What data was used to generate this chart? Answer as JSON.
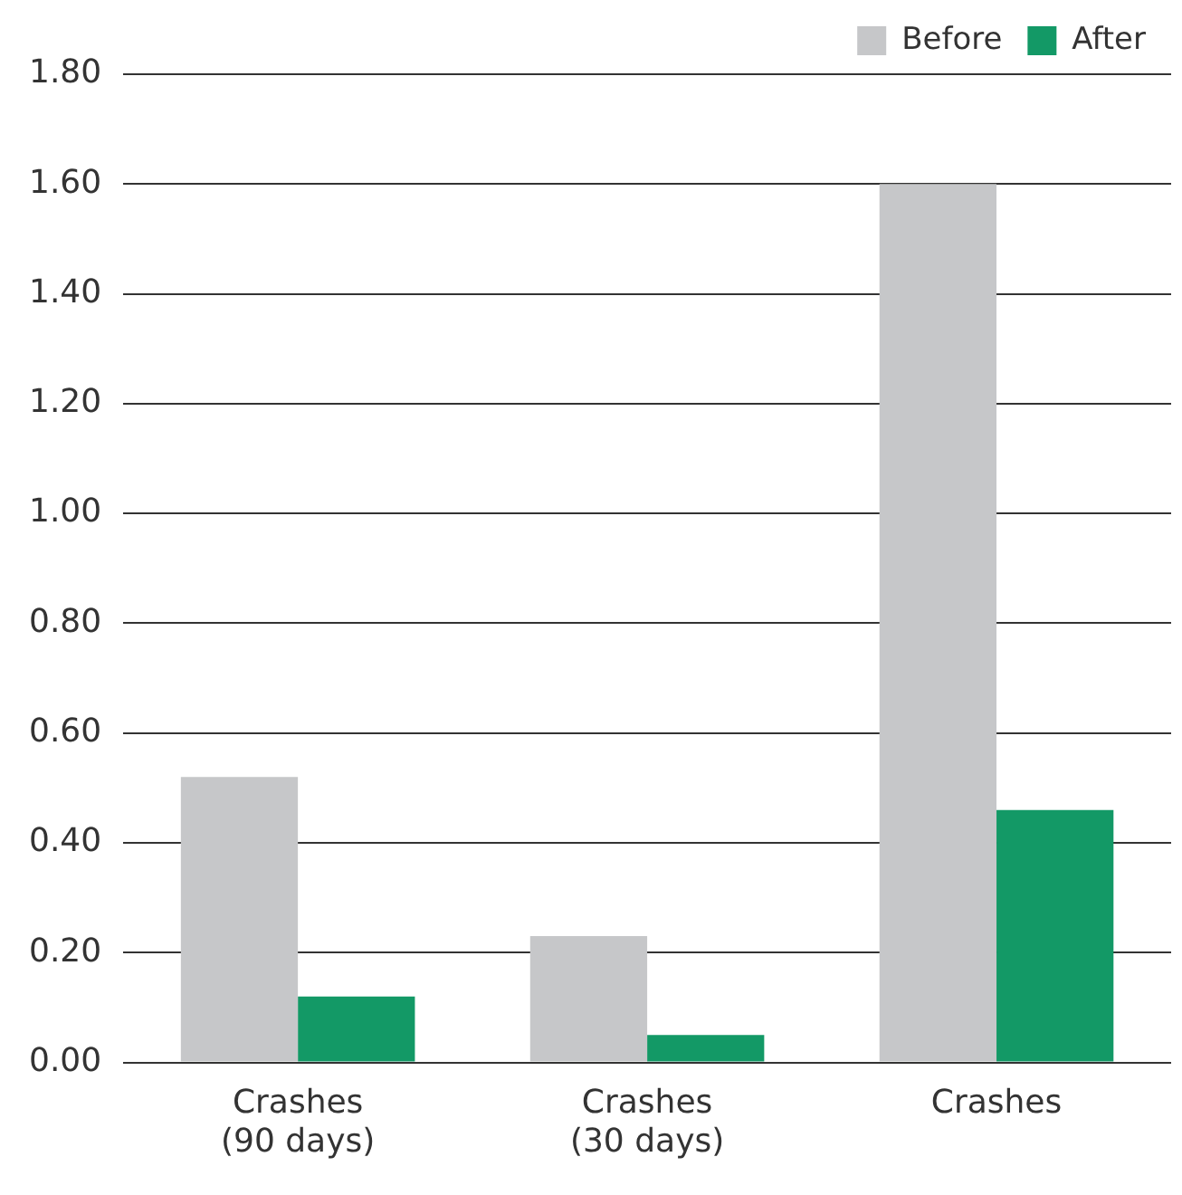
{
  "chart_data": {
    "type": "bar",
    "categories": [
      "Crashes\n(90 days)",
      "Crashes\n(30 days)",
      "Crashes"
    ],
    "series": [
      {
        "name": "Before",
        "color": "#c6c7c9",
        "values": [
          0.52,
          0.23,
          1.6
        ]
      },
      {
        "name": "After",
        "color": "#139966",
        "values": [
          0.12,
          0.05,
          0.46
        ]
      }
    ],
    "ylim": [
      0,
      1.8
    ],
    "yticks": [
      {
        "value": 0,
        "label": "0.00"
      },
      {
        "value": 0.2,
        "label": "0.20"
      },
      {
        "value": 0.4,
        "label": "0.40"
      },
      {
        "value": 0.6,
        "label": "0.60"
      },
      {
        "value": 0.8,
        "label": "0.80"
      },
      {
        "value": 1,
        "label": "1.00"
      },
      {
        "value": 1.2,
        "label": "1.20"
      },
      {
        "value": 1.4,
        "label": "1.40"
      },
      {
        "value": 1.6,
        "label": "1.60"
      },
      {
        "value": 1.8,
        "label": "1.80"
      }
    ],
    "grid": "y",
    "legend": "top right"
  }
}
